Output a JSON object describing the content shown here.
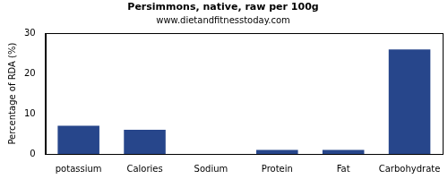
{
  "chart_data": {
    "type": "bar",
    "title": "Persimmons, native, raw per 100g",
    "subtitle": "www.dietandfitnesstoday.com",
    "y_label": "Percentage of RDA (%)",
    "categories": [
      "potassium",
      "Calories",
      "Sodium",
      "Protein",
      "Fat",
      "Carbohydrate"
    ],
    "values": [
      7,
      6,
      0,
      1,
      1,
      26
    ],
    "color": "#27468b",
    "ylim": [
      0,
      30
    ],
    "yticks": [
      0,
      10,
      20,
      30
    ],
    "grid": false
  }
}
